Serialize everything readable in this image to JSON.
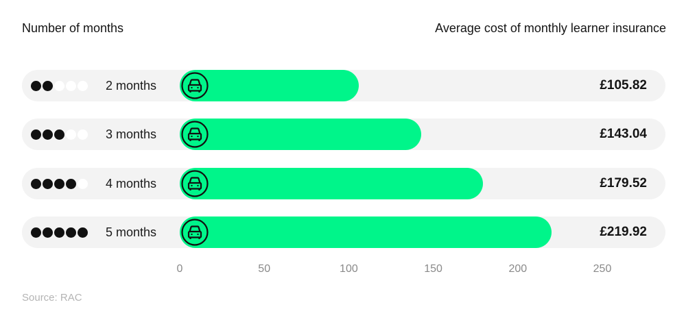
{
  "header": {
    "left_title": "Number of months",
    "right_title": "Average cost of monthly learner insurance"
  },
  "rows": [
    {
      "label": "2 months",
      "dots_filled": 2,
      "dots_total": 5,
      "value": 105.82,
      "value_label": "£105.82"
    },
    {
      "label": "3 months",
      "dots_filled": 3,
      "dots_total": 5,
      "value": 143.04,
      "value_label": "£143.04"
    },
    {
      "label": "4 months",
      "dots_filled": 4,
      "dots_total": 5,
      "value": 179.52,
      "value_label": "£179.52"
    },
    {
      "label": "5 months",
      "dots_filled": 5,
      "dots_total": 5,
      "value": 219.92,
      "value_label": "£219.92"
    }
  ],
  "axis": {
    "ticks": [
      "0",
      "50",
      "100",
      "150",
      "200",
      "250"
    ],
    "min": 0,
    "max": 250
  },
  "icons": {
    "bar_icon": "car-front-icon"
  },
  "colors": {
    "bar": "#00f58a",
    "track": "#f3f3f3",
    "dot_filled": "#111111",
    "dot_empty": "#ffffff"
  },
  "footer": {
    "source": "Source: RAC"
  },
  "chart_data": {
    "type": "bar",
    "orientation": "horizontal",
    "title": "Average cost of monthly learner insurance",
    "xlabel": "Average cost of monthly learner insurance (£)",
    "ylabel": "Number of months",
    "categories": [
      "2 months",
      "3 months",
      "4 months",
      "5 months"
    ],
    "values": [
      105.82,
      143.04,
      179.52,
      219.92
    ],
    "data_labels": [
      "£105.82",
      "£143.04",
      "£179.52",
      "£219.92"
    ],
    "xlim": [
      0,
      250
    ],
    "x_ticks": [
      0,
      50,
      100,
      150,
      200,
      250
    ],
    "grid": false,
    "legend": null,
    "source": "Source: RAC"
  }
}
